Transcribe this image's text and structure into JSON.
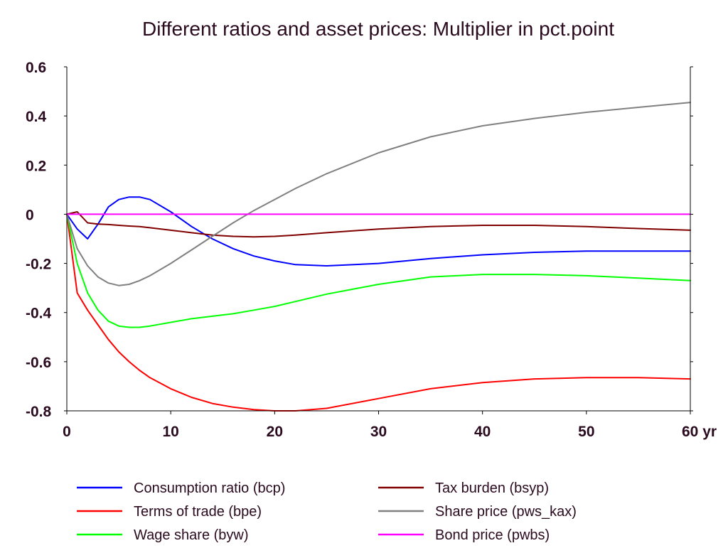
{
  "chart_data": {
    "type": "line",
    "title": "Different ratios and asset prices: Multiplier in pct.point",
    "xlabel": "",
    "ylabel": "",
    "xlim": [
      0,
      60
    ],
    "ylim": [
      -0.8,
      0.6
    ],
    "x_ticks": [
      0,
      10,
      20,
      30,
      40,
      50,
      60
    ],
    "x_tick_labels": [
      "0",
      "10",
      "20",
      "30",
      "40",
      "50",
      "60 yr"
    ],
    "y_ticks": [
      0.6,
      0.4,
      0.2,
      0,
      -0.2,
      -0.4,
      -0.6,
      -0.8
    ],
    "y_tick_labels": [
      "0.6",
      "0.4",
      "0.2",
      "0",
      "-0.2",
      "-0.4",
      "-0.6",
      "-0.8"
    ],
    "grid": false,
    "legend_position": "bottom",
    "series": [
      {
        "name": "Consumption ratio (bcp)",
        "color": "#0000ff",
        "x": [
          0,
          1,
          2,
          3,
          4,
          5,
          6,
          7,
          8,
          10,
          12,
          14,
          16,
          18,
          20,
          22,
          25,
          30,
          35,
          40,
          45,
          50,
          55,
          60
        ],
        "y": [
          0,
          -0.06,
          -0.1,
          -0.04,
          0.03,
          0.06,
          0.07,
          0.07,
          0.06,
          0.01,
          -0.05,
          -0.1,
          -0.14,
          -0.17,
          -0.19,
          -0.205,
          -0.21,
          -0.2,
          -0.18,
          -0.165,
          -0.155,
          -0.15,
          -0.15,
          -0.15
        ]
      },
      {
        "name": "Terms of trade (bpe)",
        "color": "#ff0000",
        "x": [
          0,
          1,
          2,
          3,
          4,
          5,
          6,
          7,
          8,
          10,
          12,
          14,
          16,
          18,
          20,
          22,
          25,
          30,
          35,
          40,
          45,
          50,
          55,
          60
        ],
        "y": [
          0,
          -0.32,
          -0.39,
          -0.45,
          -0.51,
          -0.56,
          -0.6,
          -0.635,
          -0.665,
          -0.71,
          -0.745,
          -0.77,
          -0.785,
          -0.795,
          -0.8,
          -0.8,
          -0.79,
          -0.75,
          -0.71,
          -0.685,
          -0.67,
          -0.665,
          -0.665,
          -0.67
        ]
      },
      {
        "name": "Wage share (byw)",
        "color": "#00ff00",
        "x": [
          0,
          1,
          2,
          3,
          4,
          5,
          6,
          7,
          8,
          10,
          12,
          14,
          16,
          18,
          20,
          22,
          25,
          30,
          35,
          40,
          45,
          50,
          55,
          60
        ],
        "y": [
          0,
          -0.2,
          -0.32,
          -0.39,
          -0.435,
          -0.455,
          -0.46,
          -0.46,
          -0.455,
          -0.44,
          -0.425,
          -0.415,
          -0.405,
          -0.39,
          -0.375,
          -0.355,
          -0.325,
          -0.285,
          -0.255,
          -0.245,
          -0.245,
          -0.25,
          -0.26,
          -0.27
        ]
      },
      {
        "name": "Tax burden (bsyp)",
        "color": "#800000",
        "x": [
          0,
          1,
          2,
          3,
          4,
          5,
          6,
          7,
          8,
          10,
          12,
          14,
          16,
          18,
          20,
          22,
          25,
          30,
          35,
          40,
          45,
          50,
          55,
          60
        ],
        "y": [
          0,
          0.01,
          -0.035,
          -0.04,
          -0.042,
          -0.045,
          -0.048,
          -0.05,
          -0.055,
          -0.065,
          -0.075,
          -0.085,
          -0.09,
          -0.092,
          -0.09,
          -0.085,
          -0.075,
          -0.06,
          -0.05,
          -0.045,
          -0.045,
          -0.05,
          -0.058,
          -0.065
        ]
      },
      {
        "name": "Share price (pws_kax)",
        "color": "#808080",
        "x": [
          0,
          1,
          2,
          3,
          4,
          5,
          6,
          7,
          8,
          10,
          12,
          14,
          16,
          18,
          20,
          22,
          25,
          30,
          35,
          40,
          45,
          50,
          55,
          60
        ],
        "y": [
          0,
          -0.14,
          -0.21,
          -0.255,
          -0.28,
          -0.29,
          -0.285,
          -0.27,
          -0.25,
          -0.2,
          -0.145,
          -0.09,
          -0.035,
          0.015,
          0.06,
          0.105,
          0.165,
          0.25,
          0.315,
          0.36,
          0.39,
          0.415,
          0.435,
          0.455
        ]
      },
      {
        "name": "Bond price (pwbs)",
        "color": "#ff00ff",
        "x": [
          0,
          60
        ],
        "y": [
          0,
          0
        ]
      }
    ]
  }
}
